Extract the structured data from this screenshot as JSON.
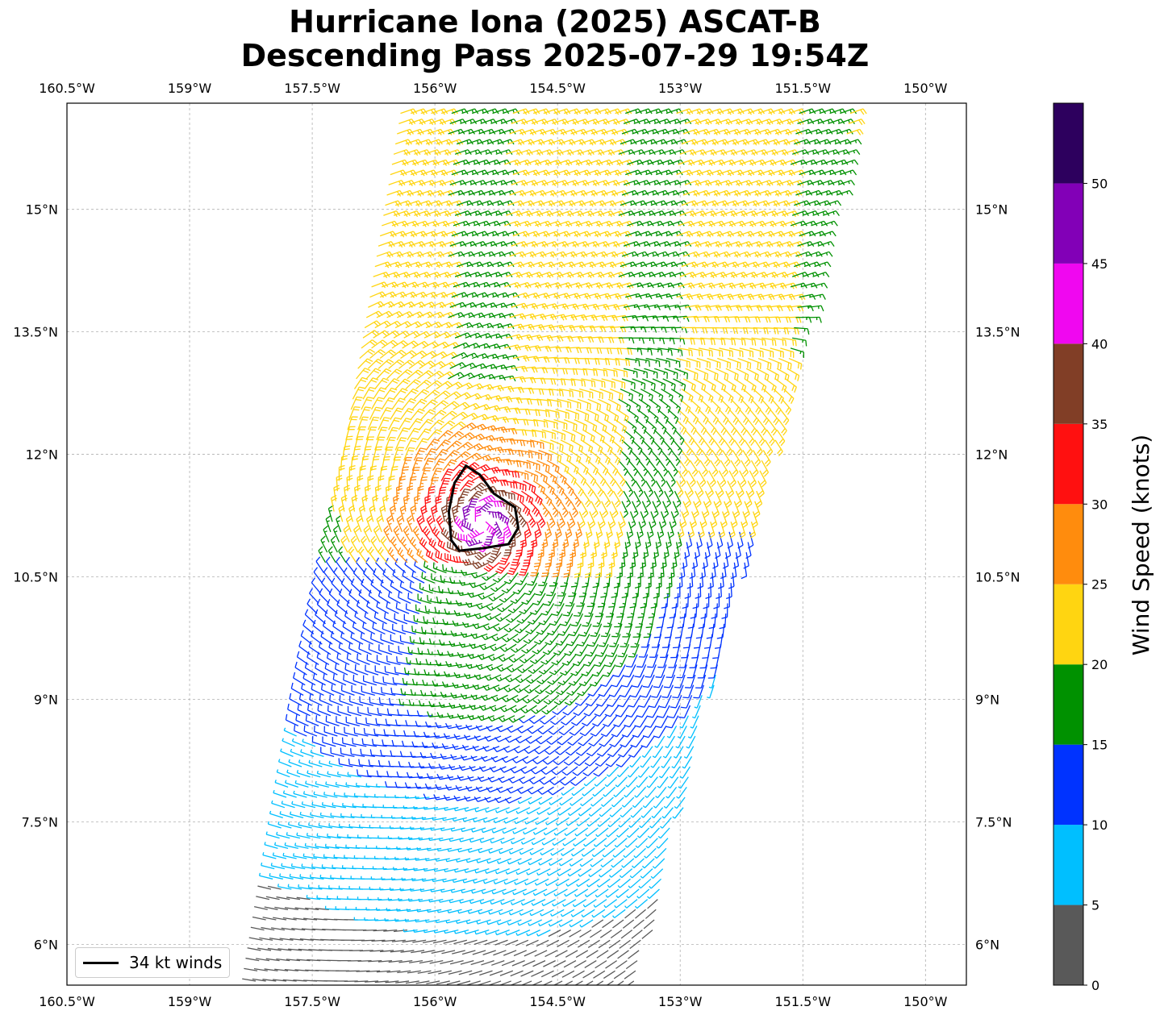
{
  "title": {
    "line1": "Hurricane Iona (2025) ASCAT-B",
    "line2": "Descending Pass 2025-07-29 19:54Z"
  },
  "map": {
    "lon_range": [
      -160.5,
      -149.5
    ],
    "lat_range": [
      5.5,
      16.3
    ],
    "lon_ticks": [
      {
        "value": -160.5,
        "label": "160.5°W"
      },
      {
        "value": -159,
        "label": "159°W"
      },
      {
        "value": -157.5,
        "label": "157.5°W"
      },
      {
        "value": -156,
        "label": "156°W"
      },
      {
        "value": -154.5,
        "label": "154.5°W"
      },
      {
        "value": -153,
        "label": "153°W"
      },
      {
        "value": -151.5,
        "label": "151.5°W"
      },
      {
        "value": -150,
        "label": "150°W"
      }
    ],
    "lat_ticks": [
      {
        "value": 6,
        "label": "6°N"
      },
      {
        "value": 7.5,
        "label": "7.5°N"
      },
      {
        "value": 9,
        "label": "9°N"
      },
      {
        "value": 10.5,
        "label": "10.5°N"
      },
      {
        "value": 12,
        "label": "12°N"
      },
      {
        "value": 13.5,
        "label": "13.5°N"
      },
      {
        "value": 15,
        "label": "15°N"
      }
    ],
    "gridlines": true,
    "storm_center": {
      "lon": -155.42,
      "lat": 11.15
    },
    "swath": {
      "low_lat": 5.5,
      "low_lon_range": [
        -158.2,
        -153.5
      ],
      "high_lat": 16.3,
      "high_lon_range": [
        -156.4,
        -150.8
      ]
    },
    "wind_barbs": "ASCAT-B wind vectors (knots), colored by speed",
    "radius_34kt": [
      {
        "lat": 11.86,
        "lon": -155.62
      },
      {
        "lat": 11.75,
        "lon": -155.45
      },
      {
        "lat": 11.52,
        "lon": -155.28
      },
      {
        "lat": 11.35,
        "lon": -155.02
      },
      {
        "lat": 11.1,
        "lon": -154.98
      },
      {
        "lat": 10.9,
        "lon": -155.1
      },
      {
        "lat": 10.85,
        "lon": -155.42
      },
      {
        "lat": 10.82,
        "lon": -155.7
      },
      {
        "lat": 10.95,
        "lon": -155.8
      },
      {
        "lat": 11.3,
        "lon": -155.83
      },
      {
        "lat": 11.65,
        "lon": -155.76
      }
    ]
  },
  "colorbar": {
    "label": "Wind Speed (knots)",
    "bounds": [
      0,
      5,
      10,
      15,
      20,
      25,
      30,
      35,
      40,
      45,
      50,
      55
    ],
    "tick_labels": [
      "0",
      "5",
      "10",
      "15",
      "20",
      "25",
      "30",
      "35",
      "40",
      "45",
      "50"
    ],
    "colors": [
      "#595959",
      "#00bfff",
      "#0033ff",
      "#009100",
      "#ffd511",
      "#ff8c0d",
      "#ff1010",
      "#813e26",
      "#f007f0",
      "#8200b7",
      "#2d005e"
    ]
  },
  "legend": {
    "label": "34 kt winds"
  }
}
